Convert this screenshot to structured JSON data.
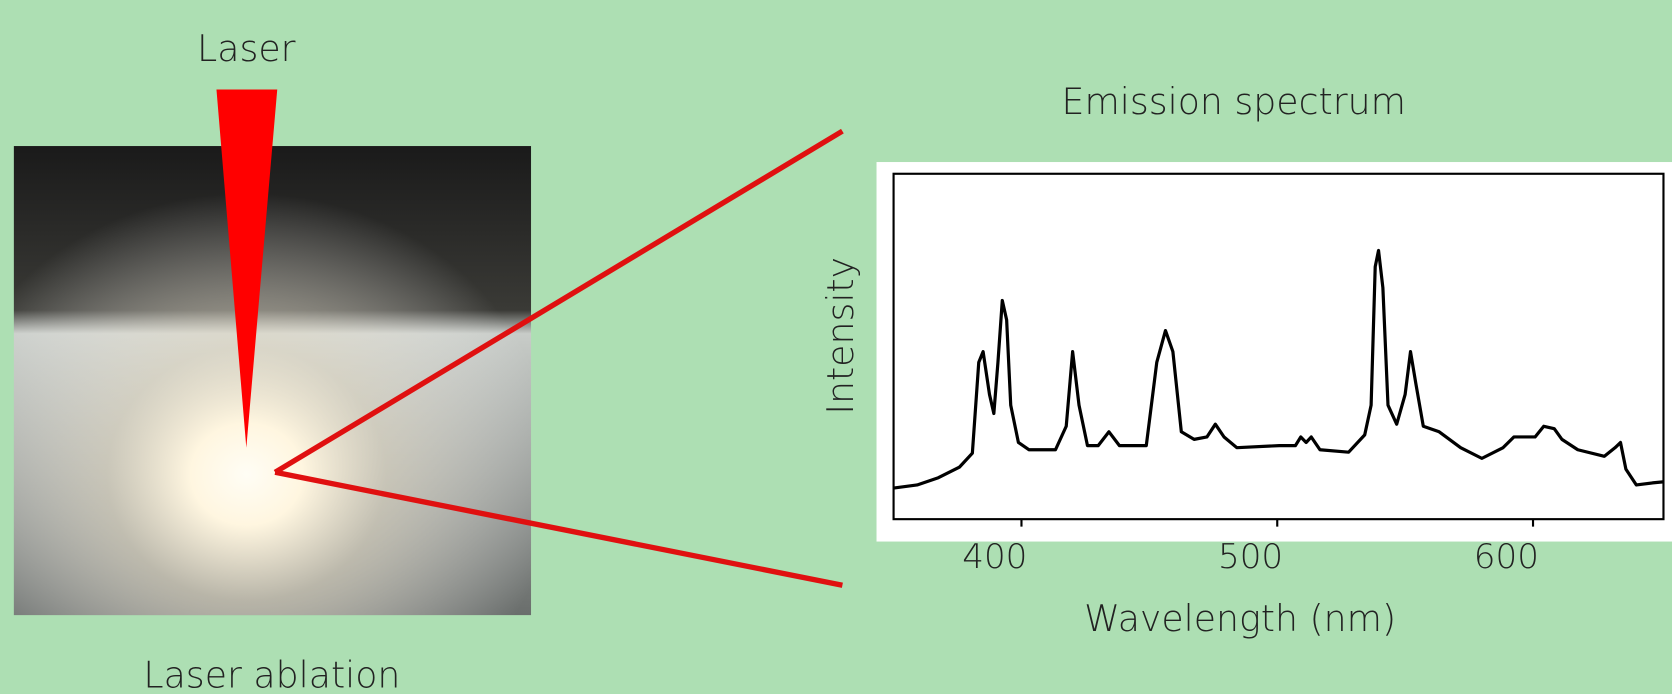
{
  "labels": {
    "laser": "Laser",
    "photo_caption": "Laser ablation"
  },
  "chart_data": {
    "type": "line",
    "title": "Emission spectrum",
    "x_label": "Wavelength (nm)",
    "y_label": "Intensity",
    "xlim": [
      350,
      651
    ],
    "xticks": [
      400,
      500,
      600
    ],
    "ylim": [
      0,
      100
    ],
    "series": [
      {
        "color": "#000000",
        "x": [
          350.0,
          359.2,
          367.5,
          375.8,
          380.8,
          383.3,
          385.0,
          387.5,
          389.2,
          390.8,
          392.5,
          394.2,
          395.8,
          398.8,
          402.9,
          413.3,
          417.5,
          420.0,
          422.5,
          425.8,
          430.0,
          434.2,
          438.3,
          448.8,
          452.9,
          456.3,
          459.2,
          462.5,
          467.5,
          472.5,
          475.8,
          479.2,
          484.2,
          500.8,
          507.1,
          509.2,
          511.3,
          513.3,
          516.7,
          527.9,
          534.2,
          536.7,
          538.3,
          539.6,
          541.3,
          543.3,
          546.7,
          550.0,
          552.1,
          554.2,
          557.1,
          563.3,
          571.7,
          580.0,
          588.3,
          592.5,
          600.8,
          604.2,
          608.3,
          611.3,
          617.5,
          627.9,
          632.1,
          634.2,
          636.3,
          640.4,
          646.7,
          650.8
        ],
        "values": [
          9.0,
          9.9,
          12.0,
          15.1,
          19.1,
          45.4,
          48.5,
          36.1,
          30.6,
          45.4,
          63.3,
          57.7,
          33.0,
          22.2,
          20.1,
          20.1,
          26.9,
          48.5,
          33.0,
          21.3,
          21.3,
          25.3,
          21.3,
          21.3,
          45.4,
          54.6,
          48.5,
          25.3,
          23.1,
          23.8,
          27.5,
          23.8,
          20.7,
          21.3,
          21.3,
          23.8,
          22.2,
          23.8,
          20.1,
          19.4,
          24.4,
          33.0,
          73.1,
          77.8,
          67.0,
          33.0,
          27.5,
          36.1,
          48.5,
          39.2,
          26.9,
          25.3,
          20.7,
          17.6,
          20.7,
          23.8,
          23.8,
          26.9,
          26.2,
          23.1,
          20.1,
          18.2,
          20.7,
          22.2,
          14.5,
          9.9,
          10.5,
          10.8
        ]
      }
    ]
  }
}
